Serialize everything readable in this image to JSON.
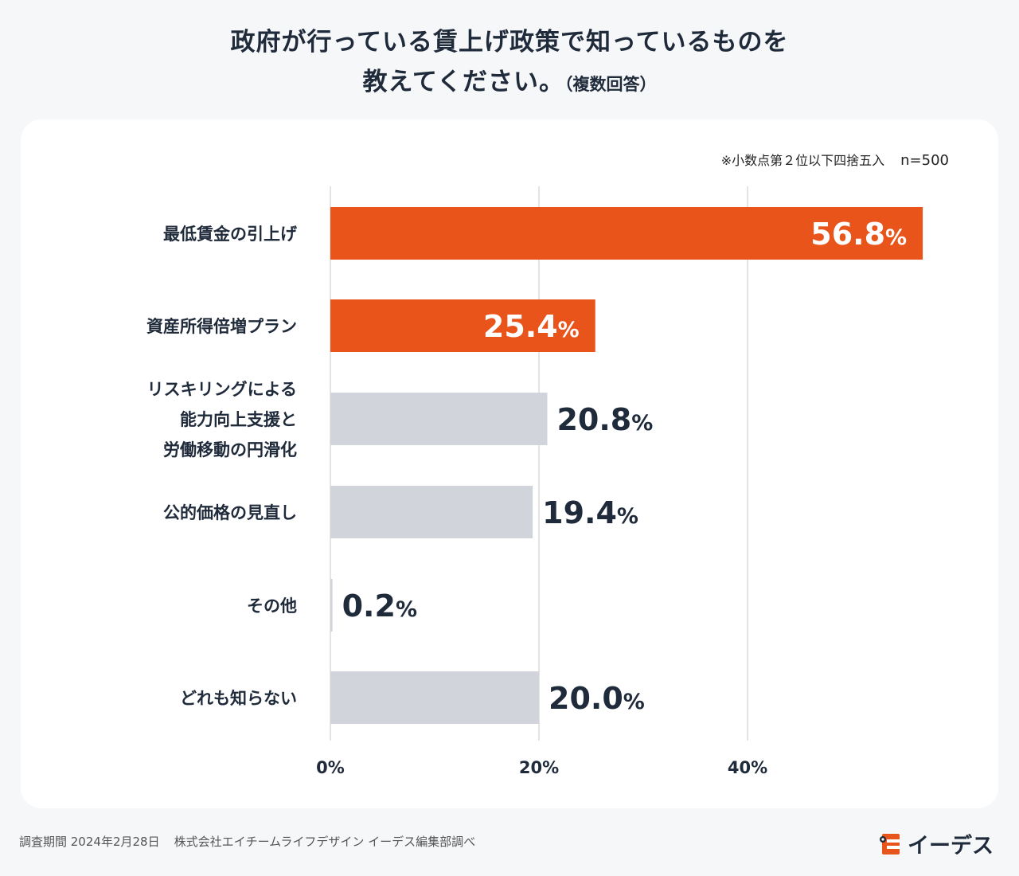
{
  "title": {
    "line1": "政府が行っている賃上げ政策で知っているものを",
    "line2": "教えてください。",
    "note": "（複数回答）"
  },
  "annotation": {
    "rounding": "※小数点第２位以下四捨五入",
    "sample": "n=500"
  },
  "footer": {
    "period": "調査期間 2024年2月28日",
    "source": "株式会社エイチームライフデザイン イーデス編集部調べ"
  },
  "logo": {
    "text": "イーデス"
  },
  "colors": {
    "highlight": "#e8541a",
    "muted": "#d1d5db",
    "grid": "#c8c8c8"
  },
  "chart_data": {
    "type": "bar",
    "orientation": "horizontal",
    "categories": [
      "最低賃金の引上げ",
      "資産所得倍増プラン",
      "リスキリングによる\n能力向上支援と\n労働移動の円滑化",
      "公的価格の見直し",
      "その他",
      "どれも知らない"
    ],
    "values": [
      56.8,
      25.4,
      20.8,
      19.4,
      0.2,
      20.0
    ],
    "highlighted": [
      true,
      true,
      false,
      false,
      false,
      false
    ],
    "value_labels": [
      "56.8",
      "25.4",
      "20.8",
      "19.4",
      "0.2",
      "20.0"
    ],
    "unit": "%",
    "xlim": [
      0,
      60
    ],
    "xticks": [
      0,
      20,
      40
    ],
    "xtick_labels": [
      "0%",
      "20%",
      "40%"
    ],
    "grid": true
  }
}
